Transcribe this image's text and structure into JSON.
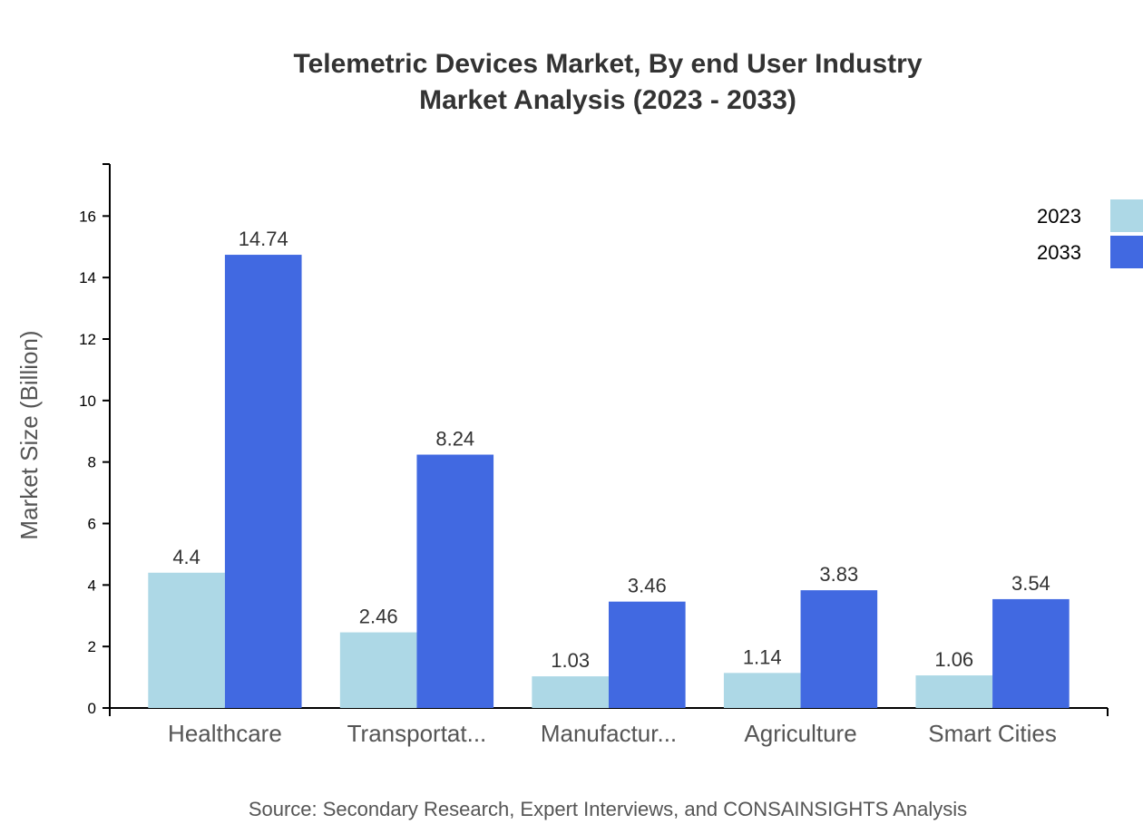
{
  "chart_data": {
    "type": "bar",
    "title": "Telemetric Devices Market, By end User Industry",
    "subtitle": "Market Analysis (2023 - 2033)",
    "xlabel": "",
    "ylabel": "Market Size (Billion)",
    "categories": [
      "Healthcare",
      "Transportat...",
      "Manufactur...",
      "Agriculture",
      "Smart Cities"
    ],
    "series": [
      {
        "name": "2023",
        "color": "#add8e6",
        "values": [
          4.4,
          2.46,
          1.03,
          1.14,
          1.06
        ]
      },
      {
        "name": "2033",
        "color": "#4169e1",
        "values": [
          14.74,
          8.24,
          3.46,
          3.83,
          3.54
        ]
      }
    ],
    "ylim": [
      0,
      17.69
    ],
    "yticks": [
      0,
      2,
      4,
      6,
      8,
      10,
      12,
      14,
      16
    ],
    "grid": false,
    "legend": "top-right",
    "source": "Source: Secondary Research, Expert Interviews, and CONSAINSIGHTS Analysis"
  }
}
